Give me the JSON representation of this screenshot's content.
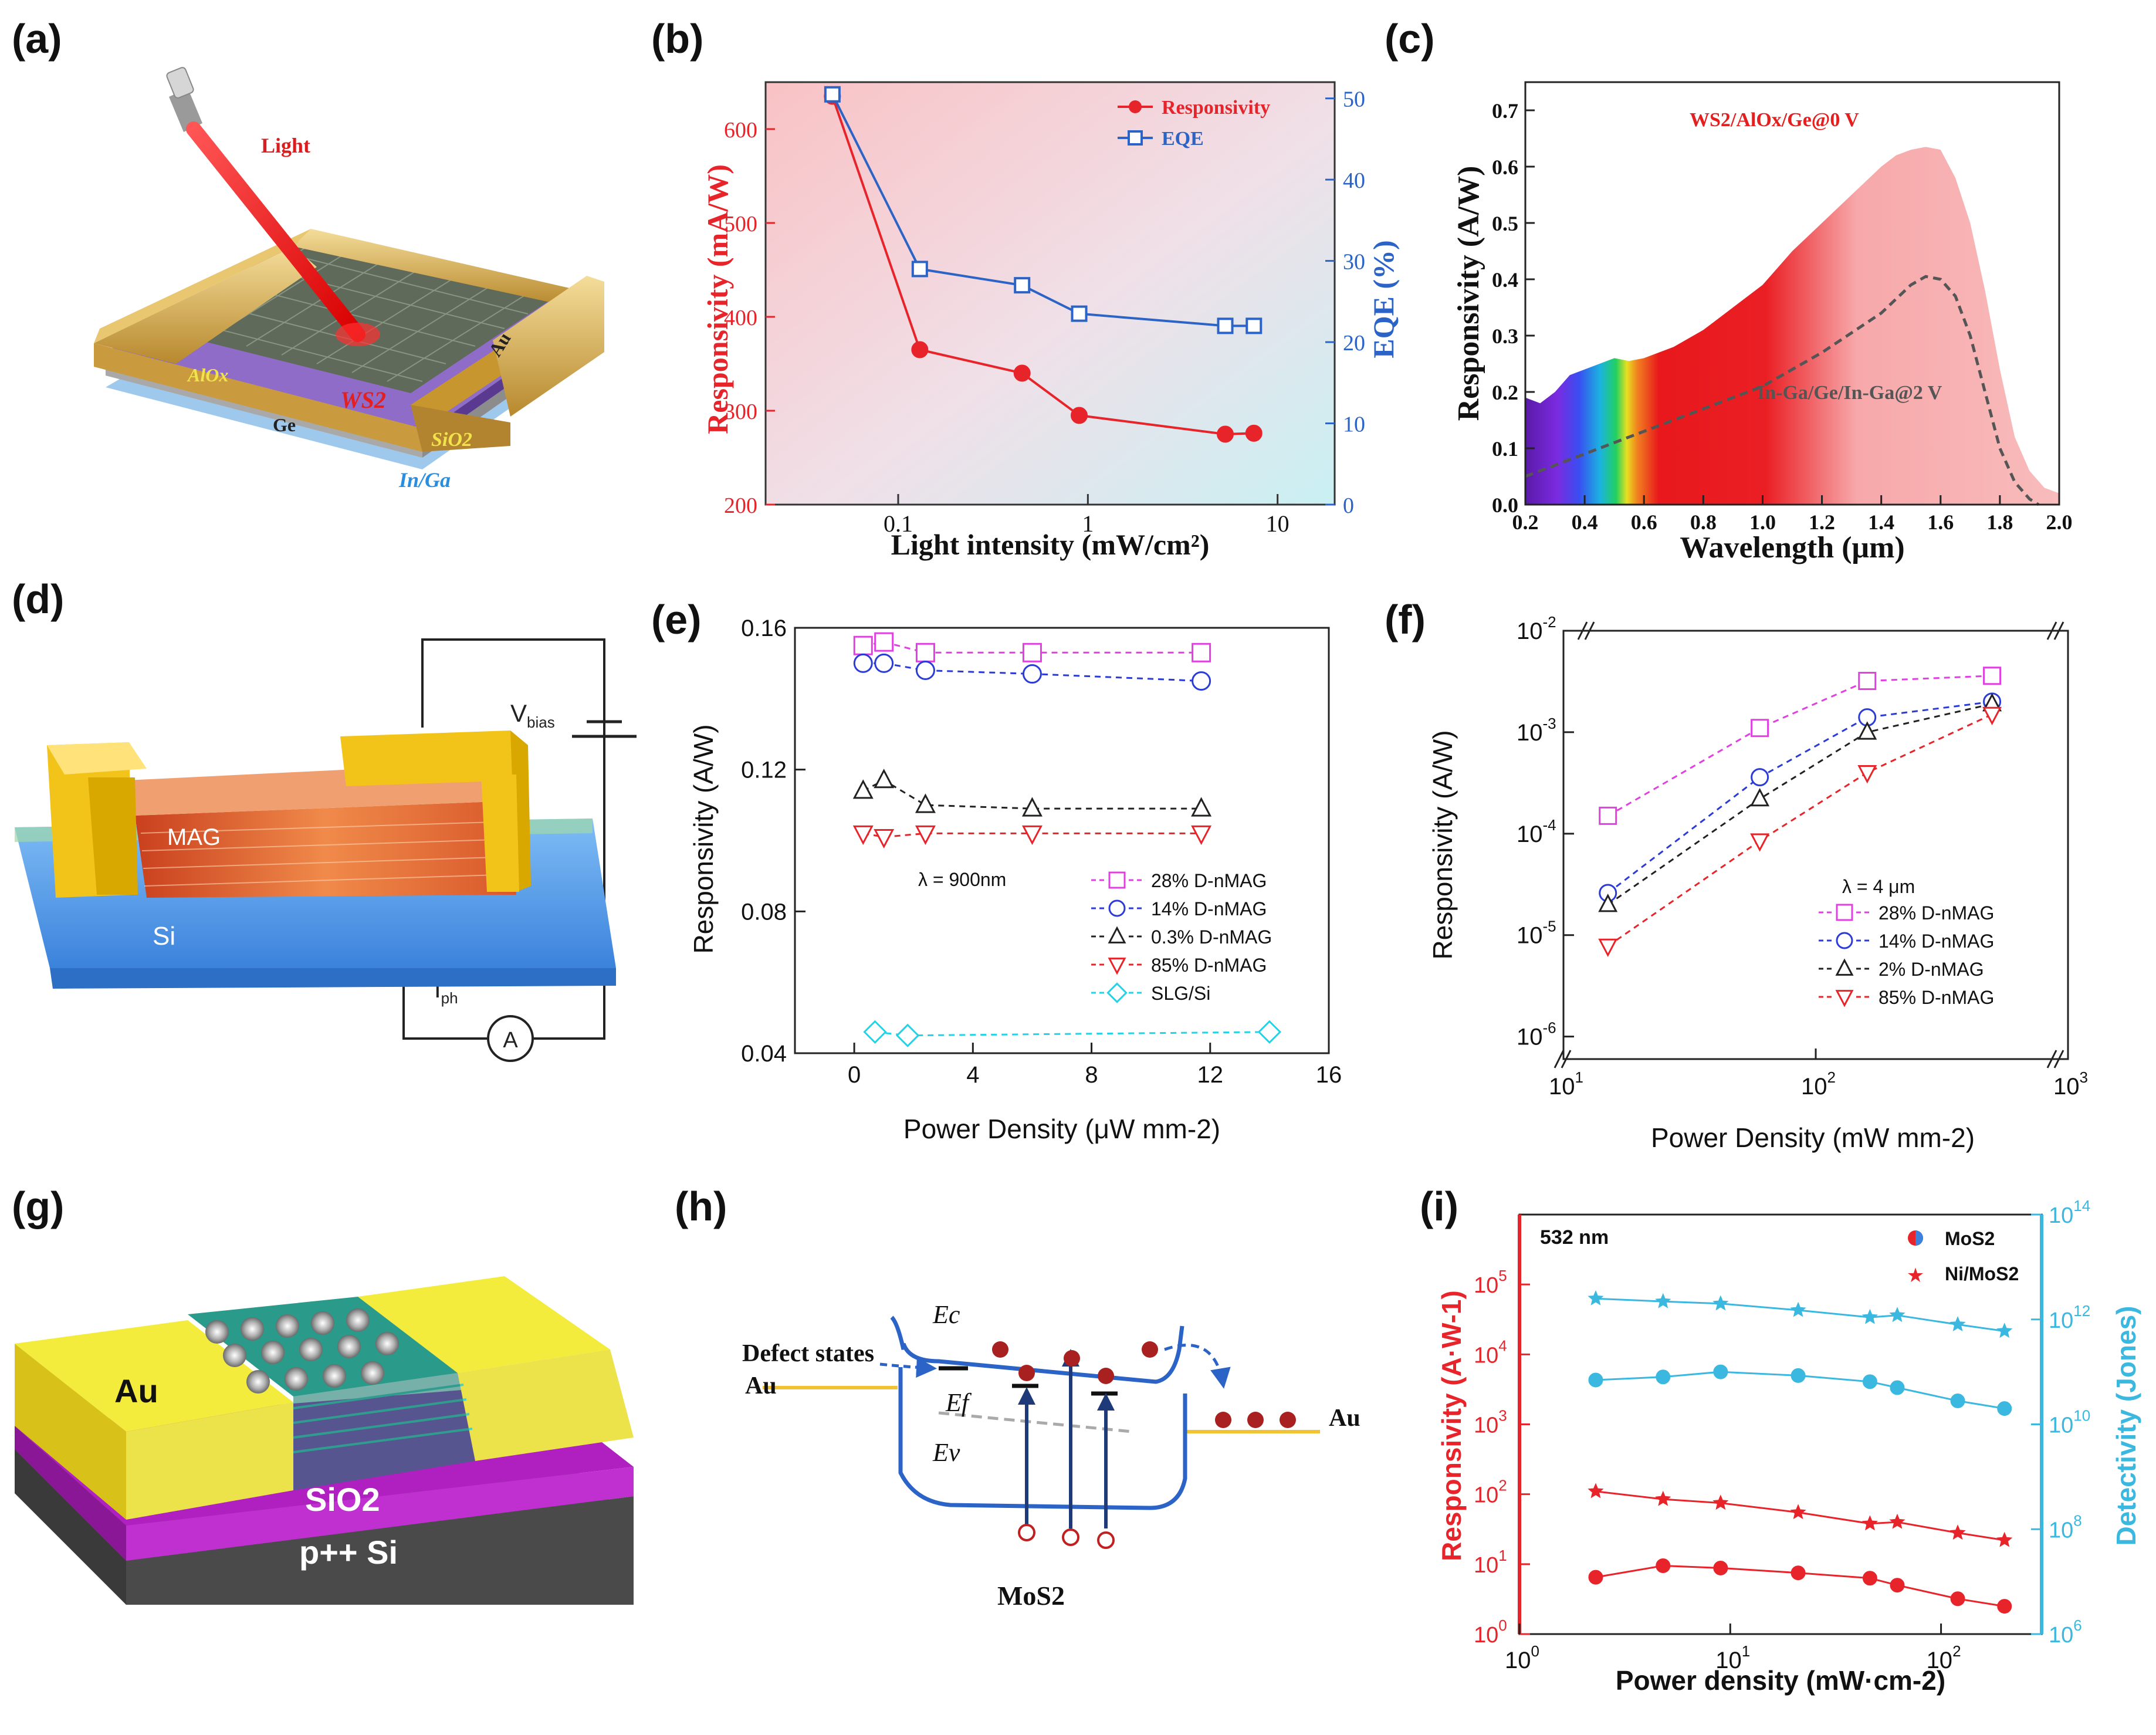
{
  "figure": {
    "panel_letters": [
      "(a)",
      "(b)",
      "(c)",
      "(d)",
      "(e)",
      "(f)",
      "(g)",
      "(h)",
      "(i)"
    ]
  },
  "panel_a": {
    "light_label": "Light",
    "au_label": "Au",
    "alox_label": "AlOx",
    "ws2_label": "WS2",
    "ge_label": "Ge",
    "sio2_label": "SiO2",
    "inga_label": "In/Ga"
  },
  "panel_d": {
    "vbias_label": "V",
    "vbias_sub": "bias",
    "iph_label": "I",
    "iph_sub": "ph",
    "ammeter_label": "A",
    "mag_label": "MAG",
    "si_label": "Si"
  },
  "panel_g": {
    "au_label": "Au",
    "sio2_label": "SiO2",
    "si_label": "p++ Si"
  },
  "panel_h": {
    "ec_label": "Ec",
    "ef_label": "Ef",
    "ev_label": "Ev",
    "defect_label": "Defect states",
    "au_left": "Au",
    "au_right": "Au",
    "material": "MoS2"
  },
  "chart_data": [
    {
      "id": "b",
      "type": "line",
      "xscale": "log",
      "xlim": [
        0.02,
        20
      ],
      "ylim": [
        200,
        650
      ],
      "y2lim": [
        0,
        52
      ],
      "xticks": [
        "0.1",
        "1",
        "10"
      ],
      "yticks": [
        "200",
        "300",
        "400",
        "500",
        "600"
      ],
      "y2ticks": [
        "0",
        "10",
        "20",
        "30",
        "40",
        "50"
      ],
      "xlabel": "Light intensity (mW/cm²)",
      "ylabel": "Responsivity (mA/W)",
      "y2label": "EQE (%)",
      "colors": {
        "responsivity": "#e8242b",
        "eqe": "#2b63c6"
      },
      "series": [
        {
          "name": "Responsivity",
          "axis": "left",
          "x": [
            0.045,
            0.13,
            0.45,
            0.9,
            5.3,
            7.5
          ],
          "values": [
            635,
            365,
            340,
            295,
            275,
            276
          ]
        },
        {
          "name": "EQE",
          "axis": "right",
          "x": [
            0.045,
            0.13,
            0.45,
            0.9,
            5.3,
            7.5
          ],
          "values": [
            50.5,
            29,
            27,
            23.5,
            22,
            22
          ]
        }
      ],
      "legend": [
        "Responsivity",
        "EQE"
      ]
    },
    {
      "id": "c",
      "type": "area",
      "xlim": [
        0.2,
        2.0
      ],
      "ylim": [
        0,
        0.75
      ],
      "xticks": [
        "0.2",
        "0.4",
        "0.6",
        "0.8",
        "1.0",
        "1.2",
        "1.4",
        "1.6",
        "1.8",
        "2.0"
      ],
      "yticks": [
        "0.0",
        "0.1",
        "0.2",
        "0.3",
        "0.4",
        "0.5",
        "0.6",
        "0.7"
      ],
      "xlabel": "Wavelength (μm)",
      "ylabel": "Responsivity (A/W)",
      "series": [
        {
          "name": "WS2/AlOx/Ge@0 V",
          "x": [
            0.2,
            0.25,
            0.3,
            0.35,
            0.4,
            0.45,
            0.5,
            0.55,
            0.6,
            0.7,
            0.8,
            0.9,
            1.0,
            1.1,
            1.2,
            1.3,
            1.4,
            1.45,
            1.5,
            1.55,
            1.6,
            1.65,
            1.7,
            1.75,
            1.8,
            1.85,
            1.9,
            1.95,
            2.0
          ],
          "values": [
            0.19,
            0.18,
            0.2,
            0.23,
            0.24,
            0.25,
            0.26,
            0.255,
            0.26,
            0.28,
            0.31,
            0.35,
            0.39,
            0.45,
            0.5,
            0.55,
            0.6,
            0.62,
            0.63,
            0.635,
            0.63,
            0.58,
            0.5,
            0.38,
            0.24,
            0.12,
            0.06,
            0.03,
            0.02
          ]
        },
        {
          "name": "In-Ga/Ge/In-Ga@2 V",
          "x": [
            0.2,
            0.4,
            0.6,
            0.8,
            1.0,
            1.2,
            1.4,
            1.5,
            1.55,
            1.6,
            1.65,
            1.7,
            1.75,
            1.8,
            1.85,
            1.9,
            1.93
          ],
          "values": [
            0.05,
            0.09,
            0.13,
            0.17,
            0.21,
            0.27,
            0.34,
            0.39,
            0.405,
            0.4,
            0.37,
            0.3,
            0.2,
            0.1,
            0.04,
            0.01,
            0.0
          ]
        }
      ],
      "annotations": [
        "WS2/AlOx/Ge@0 V",
        "In-Ga/Ge/In-Ga@2 V"
      ]
    },
    {
      "id": "e",
      "type": "line",
      "xlim": [
        -2,
        16
      ],
      "ylim": [
        0.04,
        0.16
      ],
      "xticks": [
        "0",
        "4",
        "8",
        "12",
        "16"
      ],
      "yticks": [
        "0.04",
        "0.08",
        "0.12",
        "0.16"
      ],
      "xlabel": "Power Density (μW mm-2)",
      "ylabel": "Responsivity (A/W)",
      "annotation": "λ = 900nm",
      "series": [
        {
          "name": "28% D-nMAG",
          "marker": "square",
          "color": "#e040e0",
          "x": [
            0.3,
            1.0,
            2.4,
            6.0,
            11.7
          ],
          "values": [
            0.155,
            0.156,
            0.153,
            0.153,
            0.153
          ]
        },
        {
          "name": "14% D-nMAG",
          "marker": "circle",
          "color": "#2b3bd6",
          "x": [
            0.3,
            1.0,
            2.4,
            6.0,
            11.7
          ],
          "values": [
            0.15,
            0.15,
            0.148,
            0.147,
            0.145
          ]
        },
        {
          "name": "0.3% D-nMAG",
          "marker": "triangle-up",
          "color": "#222222",
          "x": [
            0.3,
            1.0,
            2.4,
            6.0,
            11.7
          ],
          "values": [
            0.114,
            0.117,
            0.11,
            0.109,
            0.109
          ]
        },
        {
          "name": "85% D-nMAG",
          "marker": "triangle-down",
          "color": "#e8242b",
          "x": [
            0.3,
            1.0,
            2.4,
            6.0,
            11.7
          ],
          "values": [
            0.102,
            0.101,
            0.102,
            0.102,
            0.102
          ]
        },
        {
          "name": "SLG/Si",
          "marker": "diamond",
          "color": "#22d3e6",
          "x": [
            0.7,
            1.8,
            14.0
          ],
          "values": [
            0.046,
            0.045,
            0.046
          ]
        }
      ]
    },
    {
      "id": "f",
      "type": "line",
      "xscale": "log",
      "yscale": "log",
      "xlim": [
        10,
        1000
      ],
      "ylim": [
        6e-07,
        0.01
      ],
      "xticks": [
        "10",
        "10",
        "10"
      ],
      "xtick_exps": [
        "1",
        "2",
        "3"
      ],
      "yticks": [
        "10",
        "10",
        "10",
        "10",
        "10"
      ],
      "ytick_exps": [
        "-6",
        "-5",
        "-4",
        "-3",
        "-2"
      ],
      "xlabel": "Power Density (mW mm-2)",
      "ylabel": "Responsivity (A/W)",
      "annotation": "λ = 4 μm",
      "series": [
        {
          "name": "28%  D-nMAG",
          "marker": "square",
          "color": "#e040e0",
          "x": [
            15,
            60,
            160,
            500
          ],
          "values": [
            0.00015,
            0.0011,
            0.0032,
            0.0036
          ]
        },
        {
          "name": "14%  D-nMAG",
          "marker": "circle",
          "color": "#2b3bd6",
          "x": [
            15,
            60,
            160,
            500
          ],
          "values": [
            2.6e-05,
            0.00036,
            0.0014,
            0.002
          ]
        },
        {
          "name": "2%  D-nMAG",
          "marker": "triangle-up",
          "color": "#222222",
          "x": [
            15,
            60,
            160,
            500
          ],
          "values": [
            2e-05,
            0.00022,
            0.001,
            0.0019
          ]
        },
        {
          "name": "85%  D-nMAG",
          "marker": "triangle-down",
          "color": "#e8242b",
          "x": [
            15,
            60,
            160,
            500
          ],
          "values": [
            7.8e-06,
            8.5e-05,
            0.0004,
            0.0015
          ]
        }
      ]
    },
    {
      "id": "i",
      "type": "scatter",
      "xscale": "log",
      "yscale": "log",
      "xlim": [
        1,
        300
      ],
      "ylim": [
        1,
        1000000
      ],
      "y2lim": [
        1000000,
        100000000000000
      ],
      "xticks": [
        "10",
        "10",
        "10"
      ],
      "xtick_exps": [
        "0",
        "1",
        "2"
      ],
      "yticks": [
        "10",
        "10",
        "10",
        "10",
        "10",
        "10"
      ],
      "ytick_exps": [
        "0",
        "1",
        "2",
        "3",
        "4",
        "5"
      ],
      "y2ticks": [
        "10",
        "10",
        "10",
        "10",
        "10"
      ],
      "y2tick_exps": [
        "6",
        "8",
        "10",
        "12",
        "14"
      ],
      "xlabel": "Power density (mW·cm-2)",
      "ylabel": "Responsivity (A·W-1)",
      "y2label": "Detectivity (Jones)",
      "annotation": "532 nm",
      "legend": [
        "MoS2",
        "Ni/MoS2"
      ],
      "x": [
        2.3,
        4.8,
        9.0,
        21,
        46,
        62,
        120,
        200
      ],
      "series": [
        {
          "name": "MoS2 responsivity",
          "axis": "left",
          "marker": "circle",
          "color": "#e8242b",
          "values": [
            6.5,
            9.5,
            8.8,
            7.5,
            6.3,
            5.0,
            3.2,
            2.5
          ]
        },
        {
          "name": "Ni/MoS2 responsivity",
          "axis": "left",
          "marker": "star",
          "color": "#e8242b",
          "values": [
            110,
            85,
            75,
            55,
            38,
            40,
            28,
            22
          ]
        },
        {
          "name": "MoS2 detectivity",
          "axis": "right",
          "marker": "circle",
          "color": "#3bb8e0",
          "values": [
            70000000000,
            80000000000,
            100000000000,
            85000000000,
            65000000000,
            50000000000,
            28000000000,
            20000000000
          ]
        },
        {
          "name": "Ni/MoS2 detectivity",
          "axis": "right",
          "marker": "star",
          "color": "#3bb8e0",
          "values": [
            2500000000000,
            2200000000000,
            2000000000000,
            1500000000000,
            1100000000000,
            1200000000000,
            800000000000,
            600000000000
          ]
        }
      ]
    }
  ]
}
